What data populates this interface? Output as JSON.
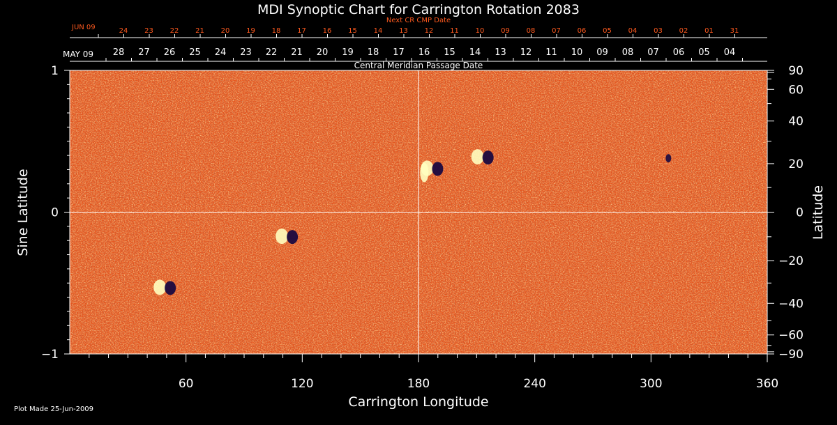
{
  "chart_data": {
    "type": "heatmap",
    "title": "MDI Synoptic Chart for Carrington Rotation 2083",
    "xlabel": "Carrington Longitude",
    "ylabel_left": "Sine Latitude",
    "ylabel_right": "Latitude",
    "xlim": [
      0,
      360
    ],
    "ylim": [
      -1,
      1
    ],
    "x_ticks": [
      "60",
      "120",
      "180",
      "240",
      "300",
      "360"
    ],
    "y_left_ticks": [
      "1",
      "0",
      "−1"
    ],
    "y_right_ticks": [
      "90",
      "60",
      "40",
      "20",
      "0",
      "−20",
      "−40",
      "−60",
      "−90"
    ],
    "top_axis_title": "Central Meridian Passage Date",
    "top_red_title": "Next CR CMP Date",
    "top_red_month": "JUN 09",
    "top_red_days": [
      "24",
      "23",
      "22",
      "21",
      "20",
      "19",
      "18",
      "17",
      "16",
      "15",
      "14",
      "13",
      "12",
      "11",
      "10",
      "09",
      "08",
      "07",
      "06",
      "05",
      "04",
      "03",
      "02",
      "01",
      "31"
    ],
    "top_white_month": "MAY 09",
    "top_white_days": [
      "28",
      "27",
      "26",
      "25",
      "24",
      "23",
      "22",
      "21",
      "20",
      "19",
      "18",
      "17",
      "16",
      "15",
      "14",
      "13",
      "12",
      "11",
      "10",
      "09",
      "08",
      "07",
      "06",
      "05",
      "04"
    ],
    "grid": "crosshair at longitude 180 and latitude 0",
    "colors": {
      "background": "#000000",
      "map_base": "#e8531a",
      "positive_polarity": "#ffffc0",
      "negative_polarity": "#1a0a40",
      "red_scale": "#ff5a1f"
    },
    "active_regions": [
      {
        "lon": 187,
        "sinlat": 0.31,
        "polarity": "bipolar"
      },
      {
        "lon": 213,
        "sinlat": 0.39,
        "polarity": "bipolar"
      },
      {
        "lon": 183,
        "sinlat": 0.28,
        "polarity": "positive"
      },
      {
        "lon": 112,
        "sinlat": -0.17,
        "polarity": "bipolar"
      },
      {
        "lon": 49,
        "sinlat": -0.53,
        "polarity": "bipolar"
      },
      {
        "lon": 309,
        "sinlat": 0.38,
        "polarity": "negative"
      }
    ]
  },
  "footer": {
    "plot_made": "Plot Made 25-Jun-2009"
  }
}
